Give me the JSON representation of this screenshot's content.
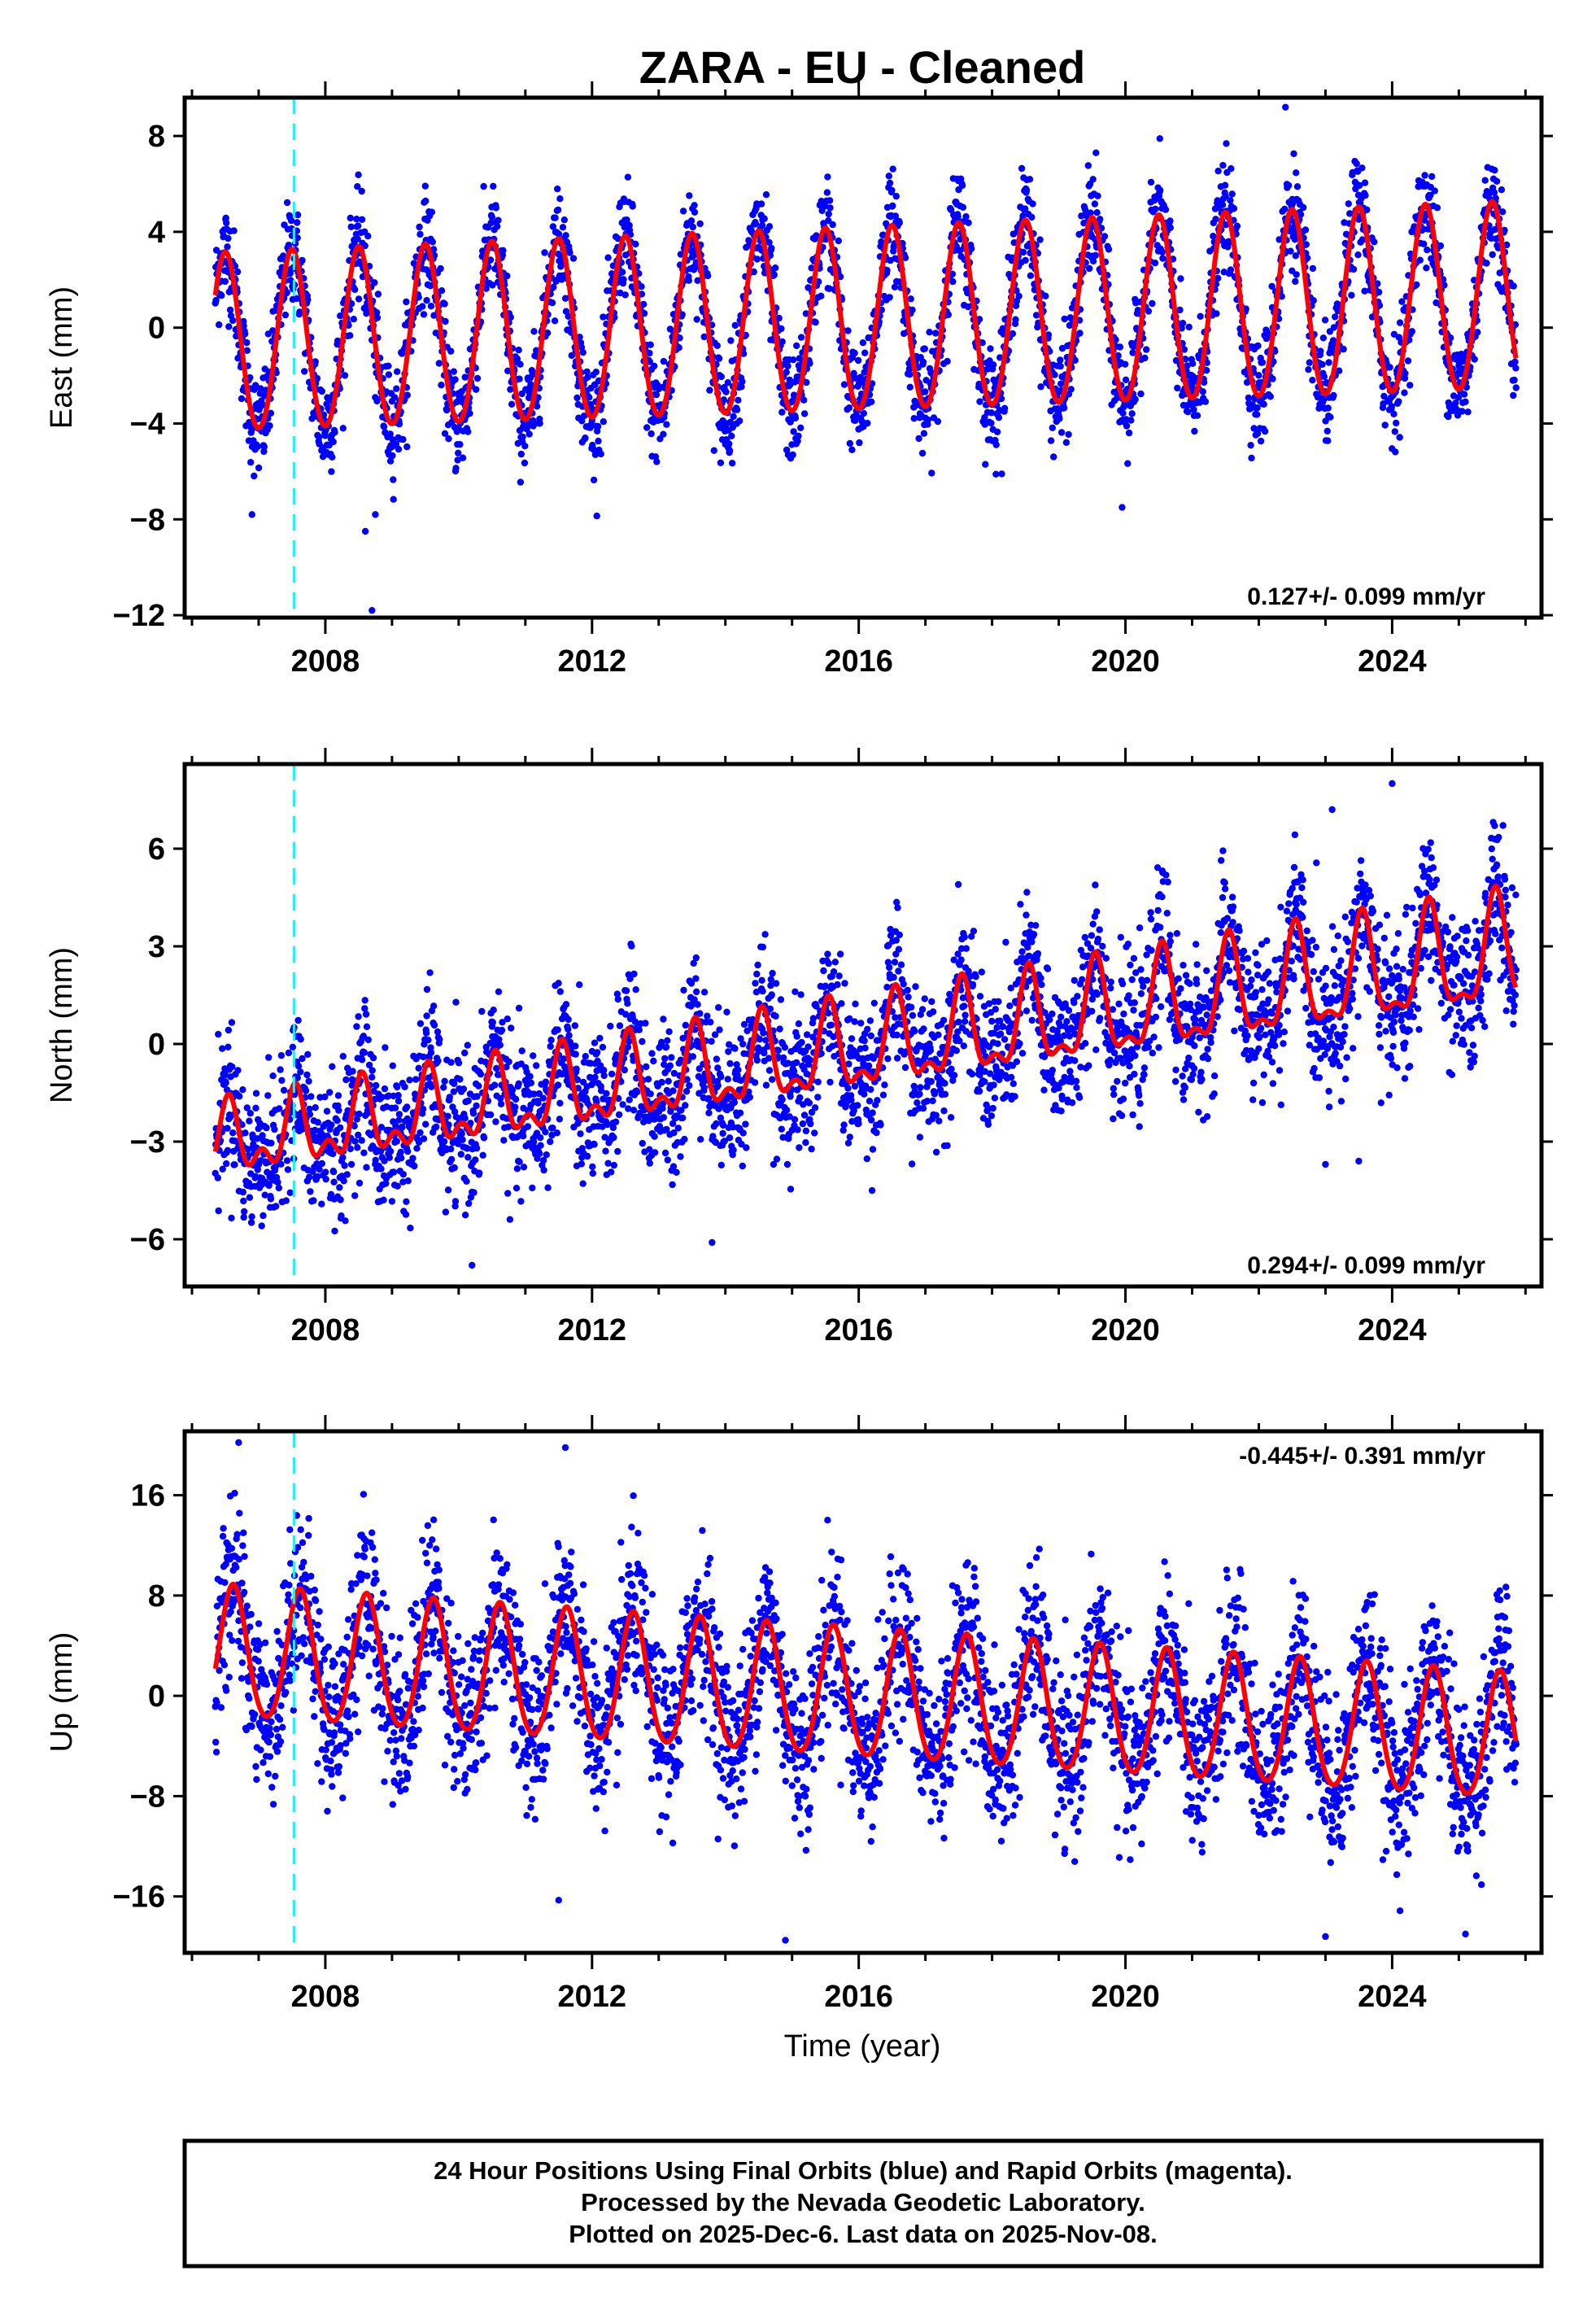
{
  "chart_data": {
    "type": "scatter",
    "title": "ZARA  - EU - Cleaned",
    "xlabel": "Time (year)",
    "xlim": [
      2005.89,
      2026.24
    ],
    "xticks": [
      2008,
      2012,
      2016,
      2020,
      2024
    ],
    "x_minor_step": 1,
    "data_range": [
      2006.35,
      2025.86
    ],
    "event_line": {
      "x": 2007.53,
      "color": "#00ffff"
    },
    "colors": {
      "points": "#0000ff",
      "fit": "#ff0000"
    },
    "panels": [
      {
        "id": "east",
        "ylabel": "East (mm)",
        "ylim": [
          -12.1,
          9.6
        ],
        "yticks": [
          8,
          4,
          0,
          -4,
          -8,
          -12
        ],
        "rate": "0.127+/- 0.099 mm/yr",
        "rate_position": "bottom-right",
        "model": {
          "offset_2006": -0.75,
          "trend": 0.1,
          "annual_amp_start": 3.7,
          "annual_amp_end": 3.9,
          "peak_phase": 0.5,
          "semiannual_amp": 0.2,
          "noise_sd": 1.1
        },
        "outliers": [
          [
            2008.7,
            -11.8
          ],
          [
            2008.6,
            -8.5
          ],
          [
            2008.75,
            -7.8
          ],
          [
            2022.4,
            9.2
          ],
          [
            2006.9,
            -7.8
          ],
          [
            2019.95,
            -7.5
          ]
        ]
      },
      {
        "id": "north",
        "ylabel": "North (mm)",
        "ylim": [
          -7.45,
          8.6
        ],
        "yticks": [
          6,
          3,
          0,
          -3,
          -6
        ],
        "rate": "0.294+/- 0.099 mm/yr",
        "rate_position": "bottom-right",
        "model": {
          "offset_2006": -3.1,
          "trend": 0.3,
          "annual_amp_start": 0.9,
          "annual_amp_end": 1.6,
          "peak_phase": 0.55,
          "semiannual_amp": 0.6,
          "noise_sd": 1.1
        },
        "outliers": [
          [
            2024.0,
            8.0
          ],
          [
            2013.8,
            -6.1
          ],
          [
            2010.2,
            -6.8
          ],
          [
            2023.0,
            -3.7
          ],
          [
            2023.5,
            -3.6
          ],
          [
            2023.1,
            7.2
          ]
        ]
      },
      {
        "id": "up",
        "ylabel": "Up (mm)",
        "ylim": [
          -20.5,
          21.1
        ],
        "yticks": [
          16,
          8,
          0,
          -8,
          -16
        ],
        "rate": "-0.445+/- 0.391 mm/yr",
        "rate_position": "top-right",
        "model": {
          "offset_2006": 3.3,
          "trend": -0.35,
          "annual_amp_start": 5.2,
          "annual_amp_end": 5.0,
          "peak_phase": 0.62,
          "semiannual_amp": 0.5,
          "noise_sd": 3.3
        },
        "outliers": [
          [
            2006.7,
            20.2
          ],
          [
            2011.6,
            19.8
          ],
          [
            2014.9,
            -19.5
          ],
          [
            2023.0,
            -19.2
          ],
          [
            2025.1,
            -19.0
          ],
          [
            2011.5,
            -16.3
          ]
        ]
      }
    ]
  },
  "footer": {
    "line1": "24 Hour Positions Using Final Orbits (blue) and Rapid Orbits (magenta).",
    "line2": "Processed by the Nevada Geodetic Laboratory.",
    "line3": "Plotted on 2025-Dec-6. Last data on 2025-Nov-08."
  }
}
